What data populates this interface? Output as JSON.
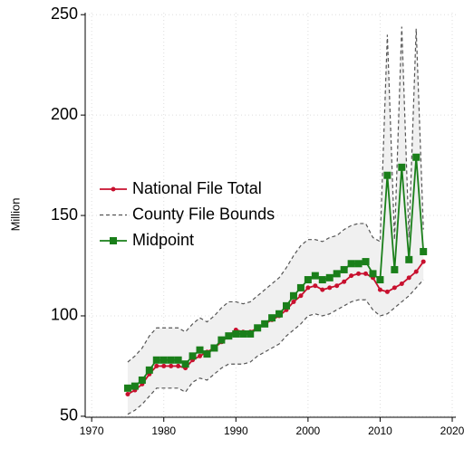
{
  "chart_data": {
    "type": "line",
    "ylabel": "Million",
    "x": [
      1975,
      1976,
      1977,
      1978,
      1979,
      1980,
      1981,
      1982,
      1983,
      1984,
      1985,
      1986,
      1987,
      1988,
      1989,
      1990,
      1991,
      1992,
      1993,
      1994,
      1995,
      1996,
      1997,
      1998,
      1999,
      2000,
      2001,
      2002,
      2003,
      2004,
      2005,
      2006,
      2007,
      2008,
      2009,
      2010,
      2011,
      2012,
      2013,
      2014,
      2015,
      2016
    ],
    "series": [
      {
        "name": "National File Total",
        "color": "#c8102e",
        "marker": "circle",
        "values": [
          61,
          63,
          66,
          71,
          75,
          75,
          75,
          75,
          74,
          78,
          80,
          82,
          84,
          87,
          90,
          93,
          92,
          92,
          94,
          96,
          98,
          100,
          103,
          107,
          110,
          114,
          115,
          113,
          114,
          115,
          117,
          120,
          121,
          121,
          119,
          113,
          112,
          114,
          116,
          119,
          122,
          127
        ]
      },
      {
        "name": "County File Bounds",
        "color": "#555555",
        "fill": "#f0f0f0",
        "dash": true,
        "high": [
          77,
          80,
          84,
          90,
          94,
          94,
          94,
          94,
          92,
          96,
          99,
          97,
          100,
          104,
          107,
          107,
          106,
          107,
          110,
          113,
          116,
          119,
          124,
          130,
          135,
          138,
          138,
          137,
          139,
          140,
          143,
          145,
          146,
          146,
          139,
          137,
          240,
          138,
          244,
          139,
          243,
          143
        ],
        "low": [
          51,
          53,
          56,
          60,
          64,
          64,
          64,
          64,
          62,
          67,
          69,
          68,
          71,
          74,
          76,
          76,
          76,
          77,
          80,
          82,
          84,
          86,
          90,
          93,
          96,
          100,
          101,
          100,
          101,
          103,
          105,
          107,
          108,
          108,
          103,
          100,
          101,
          104,
          107,
          110,
          114,
          118
        ]
      },
      {
        "name": "Midpoint",
        "color": "#1a7f1a",
        "marker": "square",
        "values": [
          64,
          65,
          68,
          73,
          78,
          78,
          78,
          78,
          76,
          80,
          83,
          81,
          84,
          88,
          90,
          91,
          91,
          91,
          94,
          96,
          99,
          101,
          105,
          110,
          114,
          118,
          120,
          118,
          119,
          121,
          123,
          126,
          126,
          127,
          121,
          118,
          170,
          123,
          174,
          128,
          179,
          132
        ]
      }
    ],
    "xlim": [
      1969.1,
      2020.5
    ],
    "xticks": [
      1970,
      1980,
      1990,
      2000,
      2010,
      2020
    ],
    "ylim": [
      49.5,
      251
    ],
    "yticks": [
      50,
      100,
      150,
      200,
      250
    ],
    "grid": true,
    "legend": "left"
  }
}
